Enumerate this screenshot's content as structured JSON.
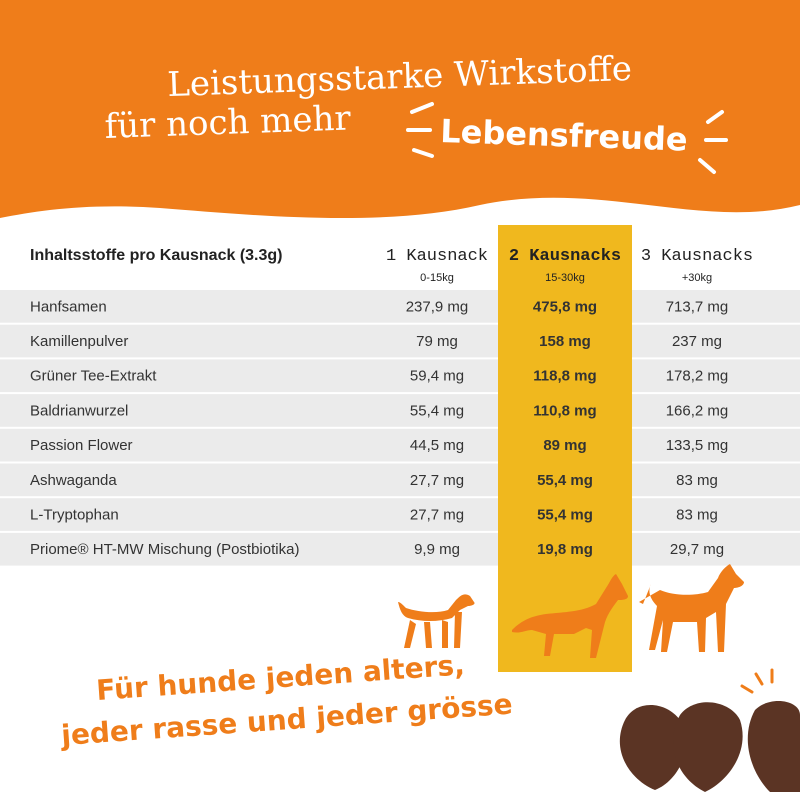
{
  "header": {
    "line1": "Leistungsstarke Wirkstoffe",
    "line2": "für noch mehr",
    "highlight": "Lebensfreude"
  },
  "table": {
    "title": "Inhaltsstoffe pro Kausnack (3.3g)",
    "columns": [
      {
        "label": "1 Kausnack",
        "weight": "0-15kg"
      },
      {
        "label": "2 Kausnacks",
        "weight": "15-30kg"
      },
      {
        "label": "3 Kausnacks",
        "weight": "+30kg"
      }
    ],
    "rows": [
      [
        "Hanfsamen",
        "237,9 mg",
        "475,8 mg",
        "713,7 mg"
      ],
      [
        "Kamillenpulver",
        "79 mg",
        "158 mg",
        "237 mg"
      ],
      [
        "Grüner Tee-Extrakt",
        "59,4 mg",
        "118,8 mg",
        "178,2 mg"
      ],
      [
        "Baldrianwurzel",
        "55,4 mg",
        "110,8 mg",
        "166,2 mg"
      ],
      [
        "Passion Flower",
        "44,5 mg",
        "89 mg",
        "133,5 mg"
      ],
      [
        "Ashwaganda",
        "27,7 mg",
        "55,4 mg",
        "83 mg"
      ],
      [
        "L-Tryptophan",
        "27,7 mg",
        "55,4 mg",
        "83 mg"
      ],
      [
        "Priome® HT-MW Mischung  (Postbiotika)",
        "9,9 mg",
        "19,8 mg",
        "29,7 mg"
      ]
    ]
  },
  "footer": {
    "lines": [
      "Für hunde jeden alters,",
      "jeder rasse und jeder grösse"
    ]
  }
}
